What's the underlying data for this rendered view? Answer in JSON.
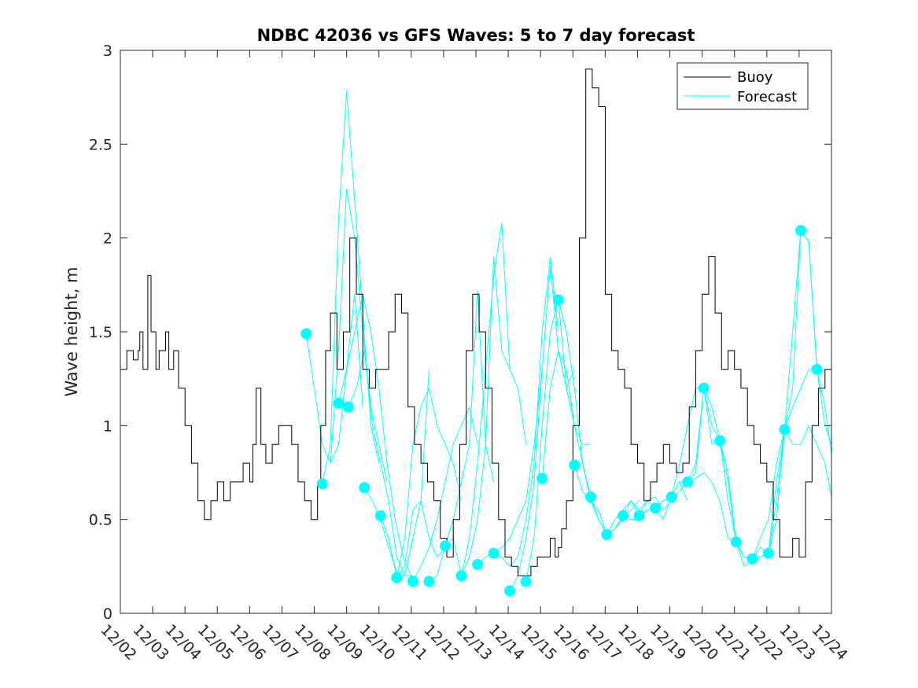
{
  "chart_data": {
    "type": "line",
    "title": "NDBC 42036 vs GFS Waves: 5 to 7 day forecast",
    "ylabel": "Wave height, m",
    "xlabel": "",
    "xlim": [
      0,
      22
    ],
    "ylim": [
      0,
      3
    ],
    "yticks": [
      0,
      0.5,
      1,
      1.5,
      2,
      2.5,
      3
    ],
    "ytick_labels": [
      "0",
      "0.5",
      "1",
      "1.5",
      "2",
      "2.5",
      "3"
    ],
    "xtick_labels": [
      "12/02",
      "12/03",
      "12/04",
      "12/05",
      "12/06",
      "12/07",
      "12/08",
      "12/09",
      "12/10",
      "12/11",
      "12/12",
      "12/13",
      "12/14",
      "12/15",
      "12/16",
      "12/17",
      "12/18",
      "12/19",
      "12/20",
      "12/21",
      "12/22",
      "12/23",
      "12/24"
    ],
    "legend": {
      "location": "top-right",
      "entries": [
        "Buoy",
        "Forecast"
      ]
    },
    "colors": {
      "buoy": "#000000",
      "forecast": "#00ffff",
      "forecast_marker": "#00ffff",
      "axes": "#262626"
    },
    "buoy": {
      "name": "Buoy",
      "x": [
        0,
        0.2,
        0.4,
        0.55,
        0.6,
        0.7,
        0.85,
        0.95,
        1.1,
        1.2,
        1.4,
        1.5,
        1.65,
        1.8,
        2.0,
        2.2,
        2.4,
        2.6,
        2.8,
        3.0,
        3.2,
        3.4,
        3.6,
        3.8,
        4.0,
        4.1,
        4.2,
        4.35,
        4.5,
        4.7,
        4.9,
        5.1,
        5.3,
        5.5,
        5.7,
        5.9,
        6.0,
        6.1,
        6.2,
        6.35,
        6.5,
        6.7,
        6.9,
        7.1,
        7.3,
        7.5,
        7.7,
        7.9,
        8.1,
        8.3,
        8.5,
        8.7,
        8.9,
        9.1,
        9.3,
        9.5,
        9.7,
        9.9,
        10.1,
        10.3,
        10.5,
        10.7,
        10.9,
        11.1,
        11.3,
        11.5,
        11.7,
        11.9,
        12.1,
        12.3,
        12.5,
        12.7,
        12.9,
        13.1,
        13.3,
        13.45,
        13.55,
        13.65,
        13.8,
        14.0,
        14.2,
        14.4,
        14.6,
        14.8,
        15.0,
        15.2,
        15.4,
        15.6,
        15.8,
        16.0,
        16.2,
        16.4,
        16.6,
        16.8,
        17.0,
        17.2,
        17.4,
        17.6,
        17.8,
        18.0,
        18.2,
        18.4,
        18.6,
        18.8,
        19.0,
        19.2,
        19.4,
        19.6,
        19.8,
        20.0,
        20.2,
        20.4,
        20.6,
        20.8,
        21.0,
        21.2,
        21.4,
        21.6,
        21.8,
        22.0
      ],
      "values": [
        1.3,
        1.4,
        1.35,
        1.4,
        1.5,
        1.3,
        1.8,
        1.5,
        1.3,
        1.4,
        1.5,
        1.3,
        1.4,
        1.2,
        1.0,
        0.8,
        0.6,
        0.5,
        0.6,
        0.7,
        0.6,
        0.7,
        0.7,
        0.8,
        0.7,
        0.9,
        1.2,
        0.9,
        0.8,
        0.9,
        1.0,
        1.0,
        0.9,
        0.7,
        0.6,
        0.5,
        0.5,
        0.7,
        1.0,
        1.4,
        1.6,
        1.3,
        1.5,
        2.0,
        1.7,
        1.3,
        1.2,
        1.3,
        1.3,
        1.5,
        1.7,
        1.6,
        1.1,
        0.9,
        0.8,
        0.7,
        0.6,
        0.4,
        0.3,
        0.5,
        0.9,
        1.4,
        1.7,
        1.5,
        1.2,
        0.8,
        0.5,
        0.3,
        0.25,
        0.2,
        0.2,
        0.25,
        0.3,
        0.3,
        0.4,
        0.3,
        0.35,
        0.45,
        0.6,
        1.0,
        2.0,
        2.9,
        2.8,
        2.7,
        1.7,
        1.4,
        1.3,
        1.2,
        0.9,
        0.8,
        0.6,
        0.7,
        0.8,
        0.9,
        0.8,
        0.75,
        0.8,
        1.1,
        1.4,
        1.7,
        1.9,
        1.6,
        1.3,
        1.4,
        1.3,
        1.2,
        1.0,
        0.9,
        0.8,
        0.7,
        0.5,
        0.3,
        0.3,
        0.4,
        0.3,
        0.7,
        1.0,
        1.2,
        1.3,
        1.0
      ]
    },
    "forecast_markers": {
      "name": "Forecast",
      "x": [
        5.75,
        6.25,
        6.75,
        7.05,
        7.55,
        8.05,
        8.55,
        9.05,
        9.55,
        10.05,
        10.55,
        11.05,
        11.55,
        12.05,
        12.55,
        13.05,
        13.55,
        14.05,
        14.55,
        15.05,
        15.55,
        16.05,
        16.55,
        17.05,
        17.55,
        18.05,
        18.55,
        19.05,
        19.55,
        20.05,
        20.55,
        21.05,
        21.55
      ],
      "values": [
        1.49,
        0.69,
        1.12,
        1.1,
        0.67,
        0.52,
        0.19,
        0.17,
        0.17,
        0.36,
        0.2,
        0.26,
        0.32,
        0.12,
        0.17,
        0.72,
        1.67,
        0.79,
        0.62,
        0.42,
        0.52,
        0.52,
        0.56,
        0.62,
        0.7,
        1.2,
        0.92,
        0.38,
        0.29,
        0.32,
        0.98,
        2.04,
        1.3
      ]
    },
    "forecast_lines": [
      {
        "x": [
          5.75,
          6.0,
          6.25,
          6.5,
          6.75,
          7.0,
          7.25,
          7.5
        ],
        "values": [
          1.49,
          1.2,
          0.9,
          0.8,
          0.9,
          1.3,
          1.7,
          1.1
        ]
      },
      {
        "x": [
          6.25,
          6.5,
          6.75,
          7.0,
          7.25,
          7.5,
          7.75,
          8.0
        ],
        "values": [
          0.69,
          0.9,
          2.1,
          2.78,
          2.2,
          1.6,
          1.0,
          0.8
        ]
      },
      {
        "x": [
          6.5,
          6.75,
          7.0,
          7.25,
          7.5,
          7.75,
          8.0,
          8.25
        ],
        "values": [
          0.8,
          1.4,
          2.26,
          2.0,
          1.5,
          1.1,
          0.9,
          0.7
        ]
      },
      {
        "x": [
          6.75,
          7.0,
          7.25,
          7.5,
          7.75,
          8.0,
          8.25,
          8.5,
          8.75,
          9.0
        ],
        "values": [
          1.12,
          1.3,
          1.5,
          1.7,
          1.5,
          1.2,
          0.8,
          0.5,
          0.3,
          0.2
        ]
      },
      {
        "x": [
          7.05,
          7.3,
          7.55,
          7.8,
          8.05,
          8.3,
          8.55,
          8.8,
          9.05
        ],
        "values": [
          1.1,
          1.2,
          1.4,
          1.0,
          0.8,
          0.6,
          0.3,
          0.2,
          0.2
        ]
      },
      {
        "x": [
          7.55,
          7.8,
          8.05,
          8.3,
          8.55,
          8.8,
          9.05,
          9.3,
          9.55
        ],
        "values": [
          0.67,
          0.6,
          0.5,
          0.35,
          0.22,
          0.2,
          0.4,
          0.6,
          1.3
        ]
      },
      {
        "x": [
          8.05,
          8.3,
          8.55,
          8.8,
          9.05,
          9.3,
          9.55,
          9.8,
          10.05
        ],
        "values": [
          0.52,
          0.4,
          0.19,
          0.25,
          0.55,
          0.6,
          0.4,
          0.3,
          0.35
        ]
      },
      {
        "x": [
          8.55,
          8.8,
          9.05,
          9.3,
          9.55,
          9.8,
          10.05,
          10.3,
          10.55
        ],
        "values": [
          0.19,
          0.4,
          0.9,
          1.1,
          1.2,
          1.0,
          0.9,
          0.8,
          0.6
        ]
      },
      {
        "x": [
          9.05,
          9.3,
          9.55,
          9.8,
          10.05,
          10.3,
          10.55,
          10.8,
          11.05
        ],
        "values": [
          0.17,
          0.25,
          0.35,
          0.5,
          0.7,
          0.9,
          1.0,
          1.1,
          0.9
        ]
      },
      {
        "x": [
          9.55,
          9.8,
          10.05,
          10.3,
          10.55,
          10.8,
          11.05,
          11.3,
          11.55
        ],
        "values": [
          0.17,
          0.2,
          0.36,
          0.5,
          0.7,
          0.9,
          1.72,
          0.9,
          0.7
        ]
      },
      {
        "x": [
          10.05,
          10.3,
          10.55,
          10.8,
          11.05,
          11.3,
          11.55,
          11.8,
          12.05
        ],
        "values": [
          0.36,
          0.4,
          0.2,
          0.3,
          0.5,
          0.9,
          1.9,
          1.4,
          1.3
        ]
      },
      {
        "x": [
          10.55,
          10.8,
          11.05,
          11.3,
          11.55,
          11.8,
          12.05,
          12.3,
          12.55
        ],
        "values": [
          0.2,
          0.4,
          0.8,
          1.3,
          1.8,
          2.08,
          1.3,
          1.2,
          0.9
        ]
      },
      {
        "x": [
          11.05,
          11.3,
          11.55,
          11.8,
          12.05,
          12.3,
          12.55,
          12.8,
          13.05
        ],
        "values": [
          0.26,
          0.3,
          0.32,
          0.35,
          0.4,
          0.5,
          0.6,
          0.9,
          1.3
        ]
      },
      {
        "x": [
          11.55,
          11.8,
          12.05,
          12.3,
          12.55,
          12.8,
          13.05,
          13.3,
          13.55
        ],
        "values": [
          0.32,
          0.3,
          0.25,
          0.3,
          0.5,
          0.8,
          1.5,
          1.9,
          1.5
        ]
      },
      {
        "x": [
          12.05,
          12.3,
          12.55,
          12.8,
          13.05,
          13.3,
          13.55,
          13.8,
          14.05
        ],
        "values": [
          0.12,
          0.2,
          0.4,
          0.7,
          1.3,
          1.85,
          1.4,
          1.2,
          1.3
        ]
      },
      {
        "x": [
          12.55,
          12.8,
          13.05,
          13.3,
          13.55,
          13.8,
          14.05,
          14.3,
          14.55
        ],
        "values": [
          0.17,
          0.4,
          1.0,
          1.5,
          1.67,
          1.2,
          1.0,
          0.9,
          0.9
        ]
      },
      {
        "x": [
          13.05,
          13.3,
          13.55,
          13.8,
          14.05,
          14.3,
          14.55,
          14.8,
          15.05
        ],
        "values": [
          0.72,
          1.2,
          1.4,
          1.3,
          1.0,
          0.8,
          0.6,
          0.5,
          0.42
        ]
      },
      {
        "x": [
          13.55,
          13.8,
          14.05,
          14.3,
          14.55,
          14.8,
          15.05,
          15.3,
          15.55
        ],
        "values": [
          1.67,
          1.5,
          1.2,
          0.8,
          0.62,
          0.5,
          0.42,
          0.45,
          0.5
        ]
      },
      {
        "x": [
          14.05,
          14.3,
          14.55,
          14.8,
          15.05,
          15.3,
          15.55,
          15.8,
          16.05
        ],
        "values": [
          0.79,
          0.65,
          0.6,
          0.55,
          0.42,
          0.45,
          0.52,
          0.55,
          0.6
        ]
      },
      {
        "x": [
          14.55,
          14.8,
          15.05,
          15.3,
          15.55,
          15.8,
          16.05,
          16.3,
          16.55
        ],
        "values": [
          0.62,
          0.5,
          0.42,
          0.45,
          0.52,
          0.6,
          0.52,
          0.6,
          0.56
        ]
      },
      {
        "x": [
          15.05,
          15.3,
          15.55,
          15.8,
          16.05,
          16.3,
          16.55,
          16.8,
          17.05
        ],
        "values": [
          0.42,
          0.5,
          0.55,
          0.6,
          0.55,
          0.6,
          0.62,
          0.55,
          0.6
        ]
      },
      {
        "x": [
          15.55,
          15.8,
          16.05,
          16.3,
          16.55,
          16.8,
          17.05,
          17.3,
          17.55
        ],
        "values": [
          0.52,
          0.5,
          0.5,
          0.55,
          0.56,
          0.5,
          0.62,
          0.7,
          0.6
        ]
      },
      {
        "x": [
          16.05,
          16.3,
          16.55,
          16.8,
          17.05,
          17.3,
          17.55,
          17.8,
          18.05
        ],
        "values": [
          0.52,
          0.55,
          0.56,
          0.6,
          0.62,
          0.7,
          0.7,
          0.8,
          1.2
        ]
      },
      {
        "x": [
          16.55,
          16.8,
          17.05,
          17.3,
          17.55,
          17.8,
          18.05,
          18.3,
          18.55
        ],
        "values": [
          0.56,
          0.6,
          0.62,
          0.8,
          1.0,
          1.2,
          1.2,
          0.9,
          0.92
        ]
      },
      {
        "x": [
          17.05,
          17.3,
          17.55,
          17.8,
          18.05,
          18.3,
          18.55,
          18.8,
          19.05
        ],
        "values": [
          0.62,
          0.65,
          0.7,
          0.72,
          0.75,
          0.7,
          0.6,
          0.4,
          0.38
        ]
      },
      {
        "x": [
          17.55,
          17.8,
          18.05,
          18.3,
          18.55,
          18.8,
          19.05,
          19.3,
          19.55
        ],
        "values": [
          0.7,
          0.75,
          1.2,
          1.1,
          0.92,
          0.6,
          0.38,
          0.3,
          0.29
        ]
      },
      {
        "x": [
          18.05,
          18.3,
          18.55,
          18.8,
          19.05,
          19.3,
          19.55,
          19.8,
          20.05
        ],
        "values": [
          1.2,
          1.0,
          0.92,
          0.7,
          0.38,
          0.3,
          0.29,
          0.3,
          0.32
        ]
      },
      {
        "x": [
          18.55,
          18.8,
          19.05,
          19.3,
          19.55,
          19.8,
          20.05,
          20.3,
          20.55
        ],
        "values": [
          0.92,
          0.75,
          0.38,
          0.25,
          0.29,
          0.3,
          0.32,
          0.6,
          0.98
        ]
      },
      {
        "x": [
          19.05,
          19.3,
          19.55,
          19.8,
          20.05,
          20.3,
          20.55,
          20.8,
          21.05
        ],
        "values": [
          0.38,
          0.3,
          0.29,
          0.35,
          0.32,
          0.7,
          0.98,
          1.2,
          2.04
        ]
      },
      {
        "x": [
          19.55,
          19.8,
          20.05,
          20.3,
          20.55,
          20.8,
          21.05,
          21.3,
          21.55
        ],
        "values": [
          0.29,
          0.4,
          0.5,
          0.8,
          0.98,
          1.5,
          2.04,
          1.98,
          1.3
        ]
      },
      {
        "x": [
          20.05,
          20.3,
          20.55,
          20.8,
          21.05,
          21.3,
          21.55,
          21.8,
          22.0
        ],
        "values": [
          0.32,
          0.5,
          0.98,
          1.1,
          1.2,
          1.3,
          1.3,
          1.1,
          0.85
        ]
      },
      {
        "x": [
          20.55,
          20.8,
          21.05,
          21.3,
          21.55,
          21.8,
          22.0
        ],
        "values": [
          0.98,
          0.9,
          0.9,
          1.0,
          0.9,
          0.8,
          0.62
        ]
      },
      {
        "x": [
          21.05,
          21.3,
          21.55,
          21.8,
          22.0
        ],
        "values": [
          2.04,
          1.98,
          1.3,
          1.0,
          0.9
        ]
      }
    ]
  }
}
